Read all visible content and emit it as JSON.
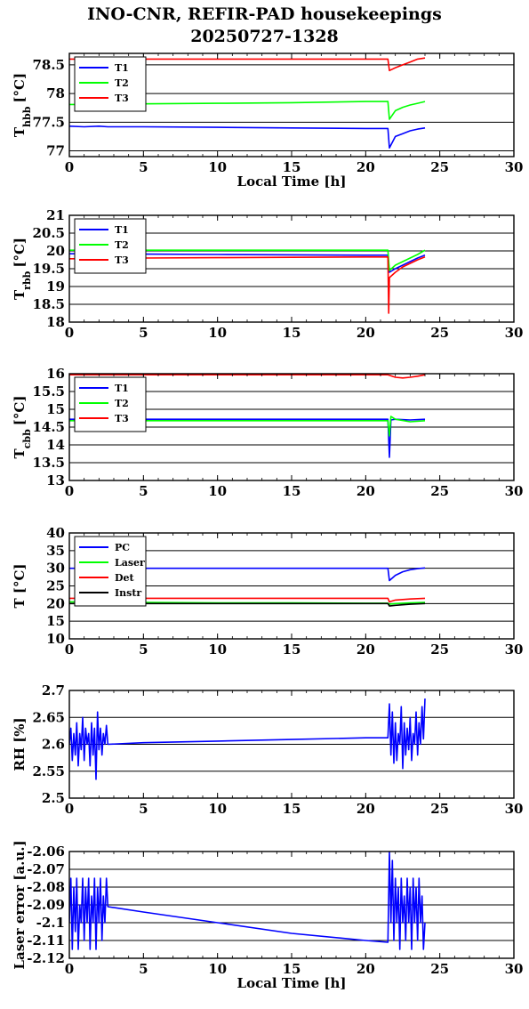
{
  "title_line1": "INO-CNR, REFIR-PAD housekeepings",
  "title_line2": "20250727-1328",
  "chart_data": [
    {
      "type": "line",
      "ylabel": "T",
      "ylabel_sub": "hbb",
      "ylabel_unit": "[°C]",
      "xlabel": "Local Time [h]",
      "xlim": [
        0,
        30
      ],
      "ylim": [
        76.9,
        78.7
      ],
      "xticks": [
        0,
        5,
        10,
        15,
        20,
        25,
        30
      ],
      "yticks": [
        77,
        77.5,
        78,
        78.5
      ],
      "ytick_labels": [
        "77",
        "77.5",
        "78",
        "78.5"
      ],
      "legend": "top-left",
      "series": [
        {
          "name": "T1",
          "color": "#0000ff",
          "x": [
            0,
            1,
            2,
            2.6,
            5,
            10,
            15,
            20,
            21.5,
            21.6,
            22,
            22.5,
            23,
            23.5,
            24
          ],
          "y": [
            77.43,
            77.42,
            77.43,
            77.42,
            77.42,
            77.41,
            77.4,
            77.39,
            77.39,
            77.05,
            77.25,
            77.3,
            77.35,
            77.38,
            77.4
          ]
        },
        {
          "name": "T2",
          "color": "#00ff00",
          "x": [
            0,
            2.6,
            5,
            10,
            15,
            20,
            21.5,
            21.6,
            22,
            22.5,
            23,
            23.5,
            24
          ],
          "y": [
            77.81,
            77.81,
            77.82,
            77.83,
            77.84,
            77.86,
            77.86,
            77.55,
            77.7,
            77.76,
            77.8,
            77.83,
            77.86
          ]
        },
        {
          "name": "T3",
          "color": "#ff0000",
          "x": [
            0,
            2.6,
            5,
            10,
            15,
            20,
            21.5,
            21.6,
            22,
            22.5,
            23,
            23.5,
            24
          ],
          "y": [
            78.6,
            78.6,
            78.6,
            78.6,
            78.6,
            78.6,
            78.6,
            78.4,
            78.45,
            78.5,
            78.55,
            78.6,
            78.62
          ]
        }
      ]
    },
    {
      "type": "line",
      "ylabel": "T",
      "ylabel_sub": "rbb",
      "ylabel_unit": "[°C]",
      "xlabel": "",
      "xlim": [
        0,
        30
      ],
      "ylim": [
        18,
        21
      ],
      "xticks": [
        0,
        5,
        10,
        15,
        20,
        25,
        30
      ],
      "yticks": [
        18,
        18.5,
        19,
        19.5,
        20,
        20.5,
        21
      ],
      "ytick_labels": [
        "18",
        "18.5",
        "19",
        "19.5",
        "20",
        "20.5",
        "21"
      ],
      "legend": "top-left",
      "series": [
        {
          "name": "T1",
          "color": "#0000ff",
          "x": [
            0,
            2.6,
            5,
            10,
            15,
            20,
            21.5,
            21.6,
            22,
            22.5,
            23,
            23.5,
            24
          ],
          "y": [
            19.92,
            19.92,
            19.91,
            19.9,
            19.89,
            19.88,
            19.88,
            19.4,
            19.5,
            19.6,
            19.7,
            19.8,
            19.88
          ]
        },
        {
          "name": "T2",
          "color": "#00ff00",
          "x": [
            0,
            2.6,
            5,
            10,
            15,
            20,
            21.5,
            21.6,
            22,
            22.5,
            23,
            23.5,
            24
          ],
          "y": [
            20.02,
            20.02,
            20.02,
            20.02,
            20.02,
            20.02,
            20.02,
            19.45,
            19.6,
            19.7,
            19.8,
            19.9,
            20.02
          ]
        },
        {
          "name": "T3",
          "color": "#ff0000",
          "x": [
            0,
            2.6,
            5,
            10,
            15,
            20,
            21.5,
            21.55,
            21.6,
            22,
            22.5,
            23,
            23.5,
            24
          ],
          "y": [
            19.78,
            19.78,
            19.8,
            19.81,
            19.82,
            19.83,
            19.83,
            18.25,
            19.25,
            19.4,
            19.55,
            19.65,
            19.75,
            19.83
          ]
        }
      ]
    },
    {
      "type": "line",
      "ylabel": "T",
      "ylabel_sub": "cbb",
      "ylabel_unit": "[°C]",
      "xlabel": "",
      "xlim": [
        0,
        30
      ],
      "ylim": [
        13,
        16
      ],
      "xticks": [
        0,
        5,
        10,
        15,
        20,
        25,
        30
      ],
      "yticks": [
        13,
        13.5,
        14,
        14.5,
        15,
        15.5,
        16
      ],
      "ytick_labels": [
        "13",
        "13.5",
        "14",
        "14.5",
        "15",
        "15.5",
        "16"
      ],
      "legend": "top-left",
      "series": [
        {
          "name": "T1",
          "color": "#0000ff",
          "x": [
            0,
            2.6,
            5,
            10,
            15,
            20,
            21.5,
            21.6,
            21.7,
            22,
            23,
            24
          ],
          "y": [
            14.72,
            14.72,
            14.72,
            14.72,
            14.72,
            14.72,
            14.72,
            13.65,
            14.7,
            14.72,
            14.7,
            14.72
          ]
        },
        {
          "name": "T2",
          "color": "#00ff00",
          "x": [
            0,
            2.6,
            5,
            10,
            15,
            20,
            21.5,
            21.6,
            21.7,
            22,
            23,
            24
          ],
          "y": [
            14.68,
            14.68,
            14.68,
            14.68,
            14.68,
            14.68,
            14.68,
            14.25,
            14.8,
            14.72,
            14.65,
            14.68
          ]
        },
        {
          "name": "T3",
          "color": "#ff0000",
          "x": [
            0,
            2.6,
            5,
            10,
            15,
            20,
            21.5,
            22,
            22.5,
            23,
            23.5,
            24
          ],
          "y": [
            15.97,
            15.97,
            15.97,
            15.97,
            15.97,
            15.97,
            15.97,
            15.9,
            15.88,
            15.9,
            15.93,
            15.97
          ]
        }
      ]
    },
    {
      "type": "line",
      "ylabel": "T [°C]",
      "ylabel_sub": "",
      "ylabel_unit": "",
      "xlabel": "",
      "xlim": [
        0,
        30
      ],
      "ylim": [
        10,
        40
      ],
      "xticks": [
        0,
        5,
        10,
        15,
        20,
        25,
        30
      ],
      "yticks": [
        10,
        15,
        20,
        25,
        30,
        35,
        40
      ],
      "ytick_labels": [
        "10",
        "15",
        "20",
        "25",
        "30",
        "35",
        "40"
      ],
      "legend": "top-left",
      "series": [
        {
          "name": "PC",
          "color": "#0000ff",
          "x": [
            0,
            2.6,
            5,
            10,
            15,
            20,
            21.5,
            21.6,
            22,
            22.5,
            23,
            23.5,
            24
          ],
          "y": [
            30,
            30,
            30,
            30,
            30,
            30,
            30,
            26.5,
            28,
            29,
            29.6,
            29.9,
            30.1
          ]
        },
        {
          "name": "Laser",
          "color": "#00ff00",
          "x": [
            0,
            2.6,
            5,
            10,
            15,
            20,
            21.5,
            21.6,
            22,
            23,
            24
          ],
          "y": [
            20.5,
            20.4,
            20.3,
            20.2,
            20.2,
            20.1,
            20.1,
            19.8,
            20,
            20.2,
            20.3
          ]
        },
        {
          "name": "Det",
          "color": "#ff0000",
          "x": [
            0,
            2.6,
            5,
            10,
            15,
            20,
            21.5,
            21.6,
            22,
            23,
            24
          ],
          "y": [
            21.5,
            21.5,
            21.5,
            21.5,
            21.5,
            21.5,
            21.5,
            20.5,
            21,
            21.3,
            21.5
          ]
        },
        {
          "name": "Instr",
          "color": "#000000",
          "x": [
            0,
            2.6,
            5,
            10,
            15,
            20,
            21.5,
            21.6,
            22,
            23,
            24
          ],
          "y": [
            20,
            20,
            20,
            20,
            20,
            20,
            20,
            19.3,
            19.5,
            19.8,
            20
          ]
        }
      ]
    },
    {
      "type": "line",
      "ylabel": "RH [%]",
      "ylabel_sub": "",
      "ylabel_unit": "",
      "xlabel": "",
      "xlim": [
        0,
        30
      ],
      "ylim": [
        2.5,
        2.7
      ],
      "xticks": [
        0,
        5,
        10,
        15,
        20,
        25,
        30
      ],
      "yticks": [
        2.5,
        2.55,
        2.6,
        2.65,
        2.7
      ],
      "ytick_labels": [
        "2.5",
        "2.55",
        "2.6",
        "2.65",
        "2.7"
      ],
      "legend": "none",
      "series": [
        {
          "name": "",
          "color": "#0000ff",
          "x": [
            0,
            0.1,
            0.2,
            0.3,
            0.4,
            0.5,
            0.6,
            0.7,
            0.8,
            0.9,
            1.0,
            1.1,
            1.2,
            1.3,
            1.4,
            1.5,
            1.6,
            1.7,
            1.8,
            1.9,
            2.0,
            2.1,
            2.2,
            2.3,
            2.4,
            2.5,
            2.6,
            5,
            10,
            15,
            20,
            21.5,
            21.6,
            21.7,
            21.8,
            21.9,
            22.0,
            22.1,
            22.2,
            22.3,
            22.4,
            22.5,
            22.6,
            22.7,
            22.8,
            22.9,
            23.0,
            23.1,
            23.2,
            23.3,
            23.4,
            23.5,
            23.6,
            23.7,
            23.8,
            23.9,
            24.0
          ],
          "y": [
            2.6,
            2.63,
            2.57,
            2.62,
            2.58,
            2.64,
            2.56,
            2.62,
            2.59,
            2.65,
            2.57,
            2.63,
            2.6,
            2.62,
            2.56,
            2.64,
            2.58,
            2.63,
            2.535,
            2.66,
            2.59,
            2.63,
            2.58,
            2.62,
            2.6,
            2.635,
            2.6,
            2.603,
            2.606,
            2.609,
            2.612,
            2.612,
            2.675,
            2.58,
            2.66,
            2.565,
            2.64,
            2.57,
            2.62,
            2.6,
            2.67,
            2.555,
            2.64,
            2.58,
            2.63,
            2.59,
            2.65,
            2.57,
            2.62,
            2.6,
            2.66,
            2.58,
            2.64,
            2.6,
            2.67,
            2.61,
            2.685
          ]
        }
      ]
    },
    {
      "type": "line",
      "ylabel": "Laser error [a.u.]",
      "ylabel_sub": "",
      "ylabel_unit": "",
      "xlabel": "Local Time [h]",
      "xlim": [
        0,
        30
      ],
      "ylim": [
        -2.12,
        -2.06
      ],
      "xticks": [
        0,
        5,
        10,
        15,
        20,
        25,
        30
      ],
      "yticks": [
        -2.12,
        -2.11,
        -2.1,
        -2.09,
        -2.08,
        -2.07,
        -2.06
      ],
      "ytick_labels": [
        "-2.12",
        "-2.11",
        "-2.1",
        "-2.09",
        "-2.08",
        "-2.07",
        "-2.06"
      ],
      "legend": "none",
      "series": [
        {
          "name": "",
          "color": "#0000ff",
          "x": [
            0,
            0.1,
            0.2,
            0.3,
            0.4,
            0.5,
            0.6,
            0.7,
            0.8,
            0.9,
            1.0,
            1.1,
            1.2,
            1.3,
            1.4,
            1.5,
            1.6,
            1.7,
            1.8,
            1.9,
            2.0,
            2.1,
            2.2,
            2.3,
            2.4,
            2.5,
            2.6,
            5,
            10,
            15,
            20,
            21.5,
            21.6,
            21.7,
            21.8,
            21.9,
            22.0,
            22.1,
            22.2,
            22.3,
            22.4,
            22.5,
            22.6,
            22.7,
            22.8,
            22.9,
            23.0,
            23.1,
            23.2,
            23.3,
            23.4,
            23.5,
            23.6,
            23.7,
            23.8,
            23.9,
            24.0
          ],
          "y": [
            -2.1,
            -2.075,
            -2.115,
            -2.08,
            -2.105,
            -2.075,
            -2.115,
            -2.09,
            -2.1,
            -2.075,
            -2.11,
            -2.08,
            -2.1,
            -2.075,
            -2.115,
            -2.085,
            -2.1,
            -2.075,
            -2.115,
            -2.08,
            -2.1,
            -2.075,
            -2.11,
            -2.085,
            -2.1,
            -2.075,
            -2.091,
            -2.094,
            -2.1,
            -2.106,
            -2.11,
            -2.111,
            -2.06,
            -2.1,
            -2.065,
            -2.11,
            -2.075,
            -2.1,
            -2.08,
            -2.115,
            -2.075,
            -2.1,
            -2.085,
            -2.11,
            -2.075,
            -2.1,
            -2.08,
            -2.115,
            -2.075,
            -2.1,
            -2.08,
            -2.11,
            -2.075,
            -2.1,
            -2.085,
            -2.115,
            -2.1
          ]
        }
      ]
    }
  ]
}
